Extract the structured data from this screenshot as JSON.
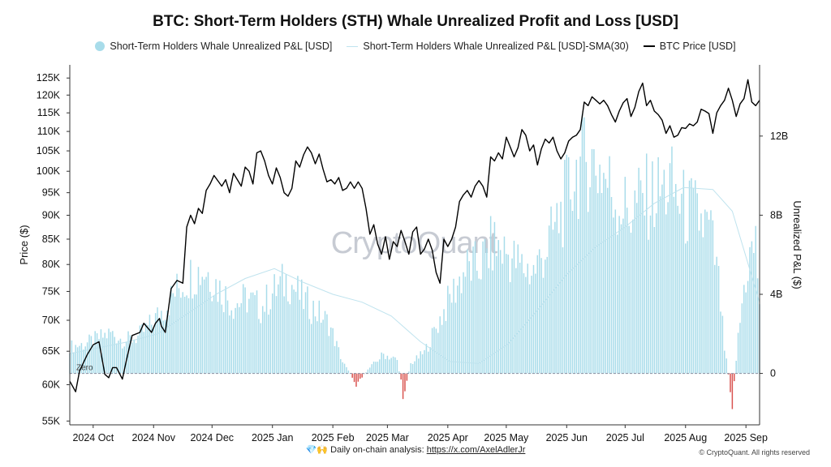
{
  "chart_data": {
    "type": "bar",
    "title": "BTC: Short-Term Holders (STH) Whale Unrealized Profit and Loss [USD]",
    "ylabel_left": "Price ($)",
    "ylabel_right": "Unrealized P&L ($)",
    "left_ticks": [
      "55K",
      "60K",
      "65K",
      "70K",
      "75K",
      "80K",
      "85K",
      "90K",
      "95K",
      "100K",
      "105K",
      "110K",
      "115K",
      "120K",
      "125K"
    ],
    "left_tick_values": [
      55000,
      60000,
      65000,
      70000,
      75000,
      80000,
      85000,
      90000,
      95000,
      100000,
      105000,
      110000,
      115000,
      120000,
      125000
    ],
    "ylim_left_log": [
      54500,
      129000
    ],
    "right_ticks": [
      "0",
      "4B",
      "8B",
      "12B"
    ],
    "right_tick_values": [
      0,
      4,
      8,
      12
    ],
    "ylim_right_billions": [
      -2.6,
      15.6
    ],
    "x_ticks": [
      "2024 Oct",
      "2024 Nov",
      "2024 Dec",
      "2025 Jan",
      "2025 Feb",
      "2025 Mar",
      "2025 Apr",
      "2025 May",
      "2025 Jun",
      "2025 Jul",
      "2025 Aug",
      "2025 Sep"
    ],
    "x_tick_days": [
      12,
      43,
      73,
      104,
      135,
      163,
      194,
      224,
      255,
      285,
      316,
      347
    ],
    "x_range_days": [
      0,
      354
    ],
    "watermark": "CryptoQuant",
    "zero_label": "Zero",
    "colors": {
      "positive": "#a8dcea",
      "negative": "#d9534f",
      "sma": "#bfe3ee",
      "price": "#000000"
    },
    "series": [
      {
        "name": "Short-Term Holders Whale Unrealized P&L [USD]",
        "kind": "bar",
        "unit": "billions USD",
        "day": [
          0,
          7,
          14,
          21,
          28,
          35,
          42,
          49,
          56,
          63,
          70,
          77,
          84,
          91,
          98,
          105,
          112,
          119,
          126,
          133,
          140,
          147,
          154,
          161,
          168,
          171,
          175,
          182,
          189,
          196,
          203,
          210,
          217,
          224,
          231,
          238,
          245,
          252,
          259,
          266,
          273,
          280,
          287,
          294,
          301,
          308,
          315,
          322,
          329,
          333,
          336,
          340,
          343,
          346,
          349,
          352,
          354
        ],
        "values": [
          1.4,
          1.5,
          1.8,
          2.1,
          1.7,
          1.9,
          2.6,
          3.5,
          4.5,
          5.2,
          5.4,
          4.4,
          3.6,
          3.9,
          3.4,
          4.3,
          4.9,
          3.9,
          3.3,
          2.6,
          0.6,
          -0.5,
          0.3,
          1.0,
          0.7,
          -1.1,
          0.5,
          1.1,
          2.6,
          4.1,
          5.4,
          5.6,
          6.7,
          6.3,
          5.6,
          5.3,
          6.6,
          8.3,
          10.4,
          11.2,
          10.6,
          9.1,
          8.4,
          9.1,
          9.3,
          9.8,
          8.6,
          8.2,
          7.3,
          4.7,
          1.3,
          -1.4,
          1.8,
          4.5,
          6.1,
          6.7,
          3.9
        ]
      },
      {
        "name": "Short-Term Holders Whale Unrealized P&L [USD]-SMA(30)",
        "kind": "line",
        "unit": "billions USD",
        "day": [
          0,
          15,
          30,
          45,
          60,
          75,
          90,
          105,
          120,
          135,
          150,
          165,
          180,
          195,
          210,
          225,
          240,
          255,
          270,
          285,
          300,
          315,
          330,
          340,
          354
        ],
        "values": [
          1.0,
          1.3,
          1.6,
          2.0,
          3.0,
          4.0,
          4.8,
          5.3,
          4.6,
          4.0,
          3.6,
          2.9,
          1.6,
          0.6,
          0.5,
          1.5,
          3.2,
          5.0,
          6.4,
          7.4,
          8.6,
          9.4,
          9.3,
          8.2,
          3.6
        ]
      },
      {
        "name": "BTC Price [USD]",
        "kind": "line",
        "unit": "USD",
        "day": [
          0,
          3,
          5,
          9,
          12,
          15,
          18,
          20,
          22,
          24,
          27,
          29,
          32,
          36,
          38,
          42,
          44,
          46,
          47,
          49,
          52,
          55,
          58,
          60,
          62,
          64,
          66,
          68,
          70,
          72,
          74,
          78,
          80,
          82,
          84,
          86,
          88,
          90,
          92,
          94,
          96,
          98,
          100,
          102,
          104,
          106,
          108,
          110,
          112,
          114,
          116,
          118,
          120,
          122,
          124,
          126,
          128,
          130,
          132,
          134,
          136,
          138,
          140,
          142,
          144,
          146,
          148,
          150,
          152,
          154,
          156,
          158,
          160,
          162,
          164,
          166,
          168,
          170,
          172,
          174,
          176,
          178,
          180,
          182,
          184,
          186,
          188,
          190,
          192,
          194,
          196,
          198,
          200,
          202,
          204,
          206,
          208,
          210,
          212,
          214,
          216,
          218,
          220,
          222,
          224,
          226,
          228,
          230,
          232,
          234,
          236,
          238,
          240,
          242,
          244,
          246,
          248,
          250,
          252,
          254,
          256,
          258,
          260,
          262,
          264,
          266,
          268,
          270,
          272,
          274,
          276,
          278,
          280,
          282,
          284,
          286,
          288,
          290,
          292,
          294,
          296,
          298,
          300,
          302,
          304,
          306,
          308,
          310,
          312,
          314,
          316,
          318,
          320,
          322,
          324,
          326,
          328,
          330,
          332,
          334,
          336,
          338,
          340,
          342,
          344,
          346,
          348,
          350,
          352,
          354
        ],
        "values": [
          60500,
          59000,
          62000,
          64500,
          66000,
          66500,
          61500,
          61000,
          62500,
          62500,
          60800,
          63500,
          67500,
          68000,
          69500,
          68000,
          69500,
          70300,
          69000,
          68000,
          75500,
          77000,
          76500,
          87500,
          90000,
          88200,
          91500,
          90400,
          95500,
          97000,
          99000,
          96500,
          98000,
          95000,
          99500,
          98000,
          96500,
          101000,
          100000,
          97000,
          104500,
          105000,
          102500,
          99000,
          97000,
          100800,
          98500,
          95000,
          94200,
          96000,
          102500,
          101000,
          104000,
          106000,
          104500,
          101800,
          104200,
          100500,
          97500,
          98000,
          97000,
          98500,
          95500,
          96000,
          97500,
          96000,
          97500,
          96000,
          91500,
          86000,
          88000,
          84000,
          82000,
          85500,
          81000,
          84500,
          83500,
          86800,
          84500,
          82000,
          86500,
          87500,
          82000,
          83000,
          85000,
          82800,
          78500,
          76500,
          85000,
          83500,
          85000,
          87500,
          93000,
          94500,
          95500,
          94000,
          96500,
          97800,
          96500,
          94000,
          103500,
          102500,
          104500,
          103000,
          108500,
          106000,
          103500,
          105800,
          110500,
          109000,
          105000,
          106500,
          101500,
          105500,
          108000,
          107000,
          108500,
          105000,
          103000,
          104500,
          107500,
          108500,
          109000,
          110500,
          118000,
          117000,
          119500,
          118500,
          117500,
          118500,
          117000,
          114500,
          112500,
          115500,
          117800,
          119000,
          114000,
          116500,
          121000,
          123500,
          117000,
          118500,
          115500,
          114500,
          113000,
          109500,
          111500,
          108500,
          109000,
          111000,
          110800,
          112000,
          111500,
          112500,
          116000,
          115500,
          114800,
          109500,
          115000,
          117000,
          118500,
          122000,
          118500,
          114000,
          117500,
          119000,
          124500,
          118000,
          117000,
          118500,
          114000,
          116000,
          112500,
          111000,
          112500,
          110000,
          108500,
          111000
        ]
      }
    ]
  },
  "footer": {
    "text": "💎🙌 Daily on-chain analysis: ",
    "link": "https://x.com/AxelAdlerJr",
    "copyright": "© CryptoQuant. All rights reserved"
  }
}
